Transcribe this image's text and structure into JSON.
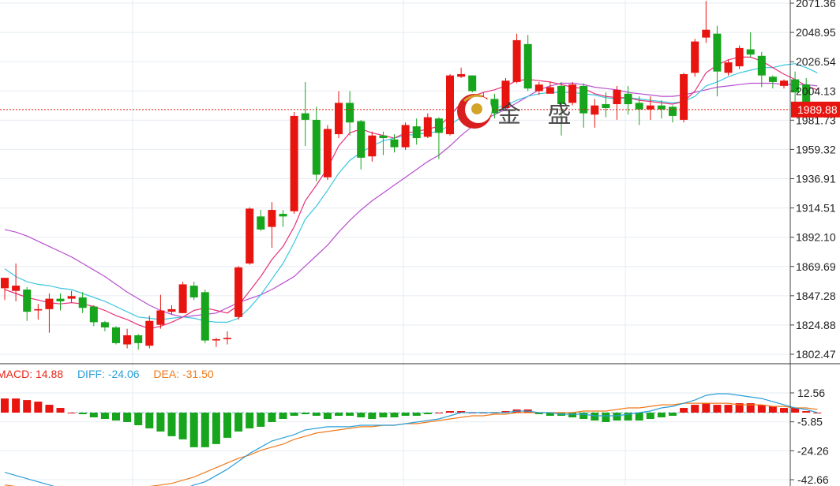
{
  "price_panel": {
    "y_ticks": [
      "2071.36",
      "2048.95",
      "2026.54",
      "2004.13",
      "1981.73",
      "1959.32",
      "1936.91",
      "1914.51",
      "1892.10",
      "1869.69",
      "1847.28",
      "1824.88",
      "1802.47"
    ],
    "current_price": "1989.88"
  },
  "macd_panel": {
    "legend": {
      "macd": "MACD: 14.88",
      "diff": "DIFF: -24.06",
      "dea": "DEA: -31.50"
    },
    "y_ticks": [
      "12.56",
      "-5.85",
      "-24.26",
      "-42.66"
    ]
  },
  "watermark": {
    "text": "金 盛"
  },
  "colors": {
    "up": "#e8140f",
    "down": "#16a51c",
    "ma_fast": "#e8307a",
    "ma_mid": "#3cc6e0",
    "ma_slow": "#b84fd0",
    "diff": "#2b9fd8",
    "dea": "#f07a1a",
    "price_line": "#e8140f"
  },
  "chart_data": [
    {
      "type": "candlestick",
      "y_axis": {
        "min": 1802.47,
        "max": 2071.36,
        "position": "right"
      },
      "candles": [
        [
          1853,
          1861,
          1860,
          1844
        ],
        [
          1851,
          1855,
          1872,
          1843
        ],
        [
          1852,
          1835,
          1854,
          1828
        ],
        [
          1836,
          1837,
          1841,
          1829
        ],
        [
          1837,
          1845,
          1849,
          1819
        ],
        [
          1845,
          1843,
          1849,
          1836
        ],
        [
          1845,
          1847,
          1851,
          1842
        ],
        [
          1846,
          1838,
          1850,
          1834
        ],
        [
          1839,
          1827,
          1840,
          1824
        ],
        [
          1827,
          1823,
          1828,
          1820
        ],
        [
          1823,
          1811,
          1824,
          1810
        ],
        [
          1810,
          1817,
          1822,
          1807
        ],
        [
          1817,
          1811,
          1818,
          1806
        ],
        [
          1809,
          1828,
          1832,
          1807
        ],
        [
          1825,
          1836,
          1848,
          1822
        ],
        [
          1835,
          1837,
          1840,
          1833
        ],
        [
          1834,
          1856,
          1858,
          1834
        ],
        [
          1855,
          1846,
          1858,
          1844
        ],
        [
          1850,
          1813,
          1852,
          1811
        ],
        [
          1813,
          1814,
          1815,
          1808
        ],
        [
          1814,
          1815,
          1820,
          1810
        ],
        [
          1831,
          1869,
          1870,
          1829
        ],
        [
          1872,
          1914,
          1915,
          1871
        ],
        [
          1908,
          1898,
          1913,
          1897
        ],
        [
          1900,
          1913,
          1919,
          1884
        ],
        [
          1910,
          1908,
          1913,
          1900
        ],
        [
          1912,
          1985,
          1988,
          1910
        ],
        [
          1987,
          1982,
          2011,
          1962
        ],
        [
          1982,
          1940,
          1992,
          1935
        ],
        [
          1938,
          1975,
          1978,
          1936
        ],
        [
          1971,
          1995,
          2004,
          1968
        ],
        [
          1995,
          1980,
          2004,
          1970
        ],
        [
          1981,
          1953,
          1982,
          1944
        ],
        [
          1954,
          1970,
          1973,
          1950
        ],
        [
          1970,
          1968,
          1973,
          1955
        ],
        [
          1967,
          1961,
          1971,
          1957
        ],
        [
          1961,
          1978,
          1980,
          1959
        ],
        [
          1977,
          1968,
          1983,
          1963
        ],
        [
          1969,
          1984,
          1987,
          1968
        ],
        [
          1983,
          1972,
          1984,
          1952
        ],
        [
          1971,
          2016,
          2017,
          1970
        ],
        [
          2015,
          2017,
          2022,
          2014
        ],
        [
          2016,
          2004,
          2016,
          2003
        ],
        [
          1989,
          1999,
          2003,
          1985
        ],
        [
          1998,
          1987,
          2002,
          1983
        ],
        [
          1991,
          2012,
          2014,
          1989
        ],
        [
          2011,
          2043,
          2048,
          2010
        ],
        [
          2040,
          2006,
          2047,
          2004
        ],
        [
          2004,
          2009,
          2011,
          2001
        ],
        [
          2002,
          2007,
          2011,
          2003
        ],
        [
          2008,
          1994,
          2011,
          1970
        ],
        [
          1995,
          2009,
          2011,
          1993
        ],
        [
          2008,
          1987,
          2010,
          1976
        ],
        [
          1986,
          1993,
          1998,
          1976
        ],
        [
          1994,
          1991,
          2003,
          1984
        ],
        [
          1994,
          2005,
          2008,
          1982
        ],
        [
          2002,
          1994,
          2008,
          1986
        ],
        [
          1995,
          1990,
          2000,
          1978
        ],
        [
          1990,
          1993,
          2000,
          1982
        ],
        [
          1993,
          1990,
          1997,
          1983
        ],
        [
          1992,
          1985,
          1993,
          1980
        ],
        [
          1982,
          2017,
          2018,
          1980
        ],
        [
          2018,
          2042,
          2044,
          2015
        ],
        [
          2045,
          2051,
          2073,
          2041
        ],
        [
          2048,
          2019,
          2054,
          2000
        ],
        [
          2018,
          2026,
          2028,
          2016
        ],
        [
          2023,
          2037,
          2039,
          2021
        ],
        [
          2036,
          2032,
          2049,
          2030
        ],
        [
          2031,
          2016,
          2034,
          2007
        ],
        [
          2015,
          2011,
          2016,
          2006
        ],
        [
          2008,
          2012,
          2013,
          2006
        ],
        [
          2013,
          2003,
          2019,
          1994
        ],
        [
          2009,
          1985,
          2014,
          1983
        ],
        [
          1989,
          1989,
          1991,
          1987
        ]
      ],
      "ma_fast": [
        1852,
        1849,
        1846,
        1844,
        1842,
        1841,
        1842,
        1841,
        1839,
        1836,
        1832,
        1829,
        1825,
        1822,
        1824,
        1827,
        1831,
        1836,
        1838,
        1836,
        1834,
        1840,
        1851,
        1862,
        1875,
        1885,
        1900,
        1920,
        1932,
        1945,
        1962,
        1972,
        1975,
        1972,
        1970,
        1968,
        1972,
        1973,
        1975,
        1977,
        1985,
        1995,
        2000,
        2003,
        2005,
        2008,
        2012,
        2013,
        2012,
        2011,
        2009,
        2007,
        2006,
        2002,
        2000,
        1999,
        1999,
        1997,
        1996,
        1995,
        1994,
        1996,
        2004,
        2018,
        2024,
        2028,
        2030,
        2030,
        2027,
        2022,
        2017,
        2013,
        2008,
        2005
      ],
      "ma_mid": [
        1868,
        1862,
        1858,
        1856,
        1855,
        1853,
        1852,
        1849,
        1846,
        1843,
        1839,
        1835,
        1831,
        1830,
        1829,
        1830,
        1831,
        1830,
        1828,
        1827,
        1827,
        1830,
        1838,
        1848,
        1860,
        1872,
        1888,
        1906,
        1916,
        1928,
        1941,
        1951,
        1957,
        1962,
        1966,
        1968,
        1970,
        1971,
        1972,
        1973,
        1978,
        1984,
        1988,
        1990,
        1991,
        1993,
        1997,
        2000,
        2002,
        2003,
        2003,
        2003,
        2002,
        2001,
        1999,
        1998,
        1999,
        1998,
        1997,
        1996,
        1995,
        1996,
        2000,
        2008,
        2011,
        2015,
        2018,
        2020,
        2022,
        2022,
        2024,
        2025,
        2022,
        2018
      ],
      "ma_slow": [
        1898,
        1896,
        1893,
        1889,
        1885,
        1881,
        1877,
        1872,
        1867,
        1862,
        1856,
        1850,
        1845,
        1840,
        1836,
        1833,
        1831,
        1832,
        1833,
        1834,
        1838,
        1842,
        1845,
        1848,
        1852,
        1857,
        1862,
        1870,
        1878,
        1886,
        1896,
        1905,
        1913,
        1920,
        1926,
        1932,
        1938,
        1944,
        1950,
        1955,
        1962,
        1970,
        1977,
        1982,
        1986,
        1990,
        1995,
        2000,
        2005,
        2008,
        2010,
        2010,
        2009,
        2007,
        2006,
        2005,
        2003,
        2002,
        2001,
        2000,
        2000,
        2001,
        2003,
        2005,
        2007,
        2008,
        2009,
        2010,
        2010,
        2010,
        2009,
        2009,
        2009,
        2008
      ]
    },
    {
      "type": "macd",
      "y_axis": {
        "min": -42.66,
        "max": 12.56,
        "position": "right"
      },
      "bars": [
        9,
        9,
        8,
        7,
        5,
        3,
        0,
        -1,
        -3,
        -4,
        -5,
        -6,
        -8,
        -10,
        -12,
        -15,
        -17,
        -22,
        -22,
        -20,
        -16,
        -12,
        -10,
        -9,
        -6,
        -4,
        -2,
        -1,
        -2,
        -4,
        -2,
        -2,
        -3,
        -4,
        -3,
        -3,
        -2,
        -2,
        -1,
        0,
        1,
        1,
        0,
        0,
        0,
        1,
        2,
        2,
        -1,
        -2,
        -2,
        -3,
        -4,
        -5,
        -6,
        -5,
        -5,
        -5,
        -4,
        -3,
        -2,
        3,
        5,
        6,
        5,
        5,
        6,
        6,
        5,
        4,
        3,
        3,
        1,
        0
      ],
      "diff": [
        -38,
        -40,
        -42,
        -44,
        -46,
        -48,
        -49,
        -50,
        -51,
        -51,
        -51,
        -51,
        -51,
        -51,
        -51,
        -50,
        -49,
        -46,
        -44,
        -40,
        -36,
        -31,
        -26,
        -22,
        -18,
        -16,
        -14,
        -11,
        -10,
        -9,
        -9,
        -9,
        -8,
        -8,
        -8,
        -8,
        -7,
        -6,
        -5,
        -4,
        -2,
        0,
        0,
        0,
        0,
        0,
        1,
        1,
        0,
        0,
        -1,
        -1,
        -1,
        -2,
        -2,
        -2,
        -1,
        0,
        1,
        3,
        4,
        6,
        8,
        11,
        12,
        12,
        11,
        10,
        9,
        7,
        5,
        3,
        2,
        0
      ],
      "dea": [
        -46,
        -47,
        -48,
        -49,
        -49,
        -50,
        -50,
        -50,
        -50,
        -50,
        -49,
        -49,
        -48,
        -47,
        -46,
        -45,
        -43,
        -41,
        -38,
        -35,
        -32,
        -29,
        -27,
        -24,
        -22,
        -20,
        -17,
        -15,
        -13,
        -12,
        -11,
        -10,
        -9,
        -9,
        -8,
        -8,
        -7,
        -7,
        -6,
        -5,
        -4,
        -3,
        -2,
        -2,
        -1,
        -1,
        0,
        0,
        0,
        0,
        0,
        0,
        1,
        1,
        1,
        2,
        3,
        3,
        4,
        5,
        5,
        6,
        6,
        6,
        6,
        6,
        5,
        5,
        5,
        4,
        4,
        3,
        3,
        2
      ]
    }
  ]
}
